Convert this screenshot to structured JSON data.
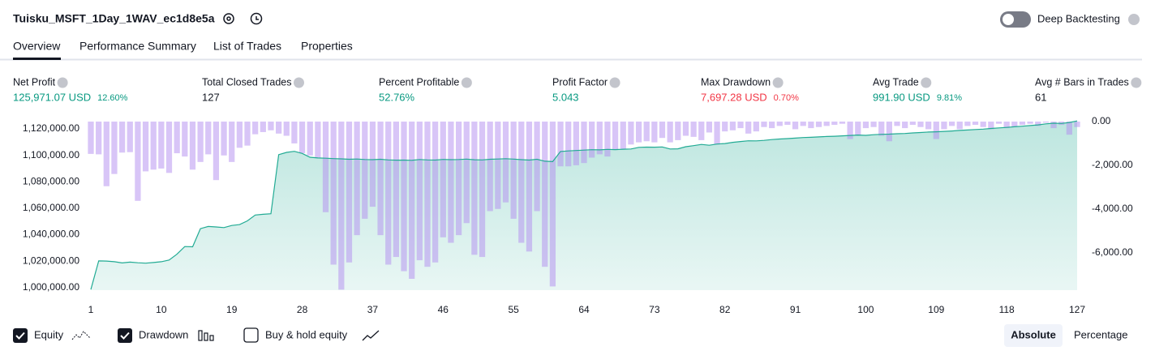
{
  "header": {
    "title": "Tuisku_MSFT_1Day_1WAV_ec1d8e5a",
    "deep_backtesting": "Deep Backtesting"
  },
  "tabs": [
    "Overview",
    "Performance Summary",
    "List of Trades",
    "Properties"
  ],
  "metrics": [
    {
      "label": "Net Profit",
      "value": "125,971.07 USD",
      "pct": "12.60%",
      "color": "#089981"
    },
    {
      "label": "Total Closed Trades",
      "value": "127",
      "color": "#131722"
    },
    {
      "label": "Percent Profitable",
      "value": "52.76%",
      "color": "#089981"
    },
    {
      "label": "Profit Factor",
      "value": "5.043",
      "color": "#089981"
    },
    {
      "label": "Max Drawdown",
      "value": "7,697.28 USD",
      "pct": "0.70%",
      "color": "#f23645"
    },
    {
      "label": "Avg Trade",
      "value": "991.90 USD",
      "pct": "9.81%",
      "color": "#089981"
    },
    {
      "label": "Avg # Bars in Trades",
      "value": "61",
      "color": "#131722"
    }
  ],
  "chart_data": {
    "type": "bar_line",
    "x": [
      1,
      2,
      3,
      4,
      5,
      6,
      7,
      8,
      9,
      10,
      11,
      12,
      13,
      14,
      15,
      16,
      17,
      18,
      19,
      20,
      21,
      22,
      23,
      24,
      25,
      26,
      27,
      28,
      29,
      30,
      31,
      32,
      33,
      34,
      35,
      36,
      37,
      38,
      39,
      40,
      41,
      42,
      43,
      44,
      45,
      46,
      47,
      48,
      49,
      50,
      51,
      52,
      53,
      54,
      55,
      56,
      57,
      58,
      59,
      60,
      61,
      62,
      63,
      64,
      65,
      66,
      67,
      68,
      69,
      70,
      71,
      72,
      73,
      74,
      75,
      76,
      77,
      78,
      79,
      80,
      81,
      82,
      83,
      84,
      85,
      86,
      87,
      88,
      89,
      90,
      91,
      92,
      93,
      94,
      95,
      96,
      97,
      98,
      99,
      100,
      101,
      102,
      103,
      104,
      105,
      106,
      107,
      108,
      109,
      110,
      111,
      112,
      113,
      114,
      115,
      116,
      117,
      118,
      119,
      120,
      121,
      122,
      123,
      124,
      125,
      126,
      127
    ],
    "xlim": [
      1,
      127
    ],
    "xticks": [
      1,
      10,
      19,
      28,
      37,
      46,
      55,
      64,
      73,
      82,
      91,
      100,
      109,
      118,
      127
    ],
    "ylim": [
      998000,
      1125500
    ],
    "yticks": [
      {
        "value": 1000000,
        "label": "1,000,000.00"
      },
      {
        "value": 1020000,
        "label": "1,020,000.00"
      },
      {
        "value": 1040000,
        "label": "1,040,000.00"
      },
      {
        "value": 1060000,
        "label": "1,060,000.00"
      },
      {
        "value": 1080000,
        "label": "1,080,000.00"
      },
      {
        "value": 1100000,
        "label": "1,100,000.00"
      },
      {
        "value": 1120000,
        "label": "1,120,000.00"
      }
    ],
    "y2lim": [
      -7720,
      0
    ],
    "y2ticks": [
      {
        "value": 0,
        "label": "0.00"
      },
      {
        "value": -2000,
        "label": "-2,000.00"
      },
      {
        "value": -4000,
        "label": "-4,000.00"
      },
      {
        "value": -6000,
        "label": "-6,000.00"
      }
    ],
    "series": [
      {
        "name": "Equity",
        "color": "#22ab94",
        "values": [
          998500,
          1020100,
          1020000,
          1019500,
          1018600,
          1019200,
          1018700,
          1018400,
          1018900,
          1019500,
          1020800,
          1025200,
          1031000,
          1030800,
          1044500,
          1046200,
          1045800,
          1045300,
          1046900,
          1047600,
          1050400,
          1054800,
          1055400,
          1055800,
          1100500,
          1102200,
          1103000,
          1101400,
          1098500,
          1098000,
          1097800,
          1097500,
          1097300,
          1097000,
          1097200,
          1096800,
          1096700,
          1097000,
          1096500,
          1096300,
          1096400,
          1096200,
          1096800,
          1096500,
          1096400,
          1096900,
          1096700,
          1096800,
          1097100,
          1096600,
          1096500,
          1097000,
          1097200,
          1097400,
          1097100,
          1096700,
          1096400,
          1097000,
          1095500,
          1095200,
          1102900,
          1103300,
          1103600,
          1103900,
          1104200,
          1104100,
          1104500,
          1104300,
          1104600,
          1104800,
          1106000,
          1106200,
          1106100,
          1106300,
          1104800,
          1104900,
          1106500,
          1107300,
          1108200,
          1107600,
          1108500,
          1108900,
          1109800,
          1110400,
          1111000,
          1110900,
          1111300,
          1111900,
          1112300,
          1112600,
          1113000,
          1113400,
          1113600,
          1113900,
          1114200,
          1114400,
          1114700,
          1115000,
          1115300,
          1115100,
          1115600,
          1115900,
          1116000,
          1116300,
          1116500,
          1116900,
          1117200,
          1117600,
          1117800,
          1118100,
          1118400,
          1118800,
          1119100,
          1119500,
          1119800,
          1120300,
          1120700,
          1121100,
          1121600,
          1122000,
          1122500,
          1123000,
          1123800,
          1124300,
          1124100,
          1124800,
          1125971.07
        ]
      },
      {
        "name": "Drawdown",
        "color": "#b28cf0",
        "axis": "y2",
        "values": [
          -1480,
          -1500,
          -2960,
          -2400,
          -1420,
          -1400,
          -3630,
          -2280,
          -2200,
          -2150,
          -2350,
          -1450,
          -1600,
          -2200,
          -1850,
          -1500,
          -2680,
          -1550,
          -1850,
          -1200,
          -1100,
          -580,
          -480,
          -400,
          -550,
          -650,
          -1000,
          -1450,
          -1550,
          -1650,
          -4150,
          -6550,
          -7697.28,
          -6450,
          -5200,
          -4450,
          -3900,
          -5200,
          -6550,
          -6200,
          -6850,
          -7200,
          -6350,
          -6650,
          -6450,
          -5300,
          -5550,
          -5200,
          -4650,
          -6100,
          -6200,
          -4100,
          -4000,
          -3700,
          -4450,
          -5550,
          -5950,
          -4100,
          -6650,
          -7550,
          -2050,
          -2050,
          -2000,
          -1900,
          -1650,
          -1500,
          -1600,
          -1300,
          -1250,
          -1050,
          -950,
          -900,
          -950,
          -750,
          -950,
          -850,
          -650,
          -700,
          -850,
          -500,
          -1050,
          -450,
          -400,
          -300,
          -550,
          -450,
          -250,
          -300,
          -200,
          -150,
          -350,
          -200,
          -300,
          -250,
          -200,
          -150,
          -100,
          -800,
          -650,
          -300,
          -250,
          -650,
          -900,
          -200,
          -300,
          -150,
          -250,
          -350,
          -800,
          -350,
          -200,
          -350,
          -200,
          -150,
          -250,
          -350,
          -100,
          -300,
          -250,
          -150,
          -100,
          -200,
          -50,
          -300,
          -150,
          -600,
          -250
        ]
      }
    ],
    "buy_hold_label": "Buy & hold equity"
  },
  "scale_buttons": [
    "Absolute",
    "Percentage"
  ]
}
